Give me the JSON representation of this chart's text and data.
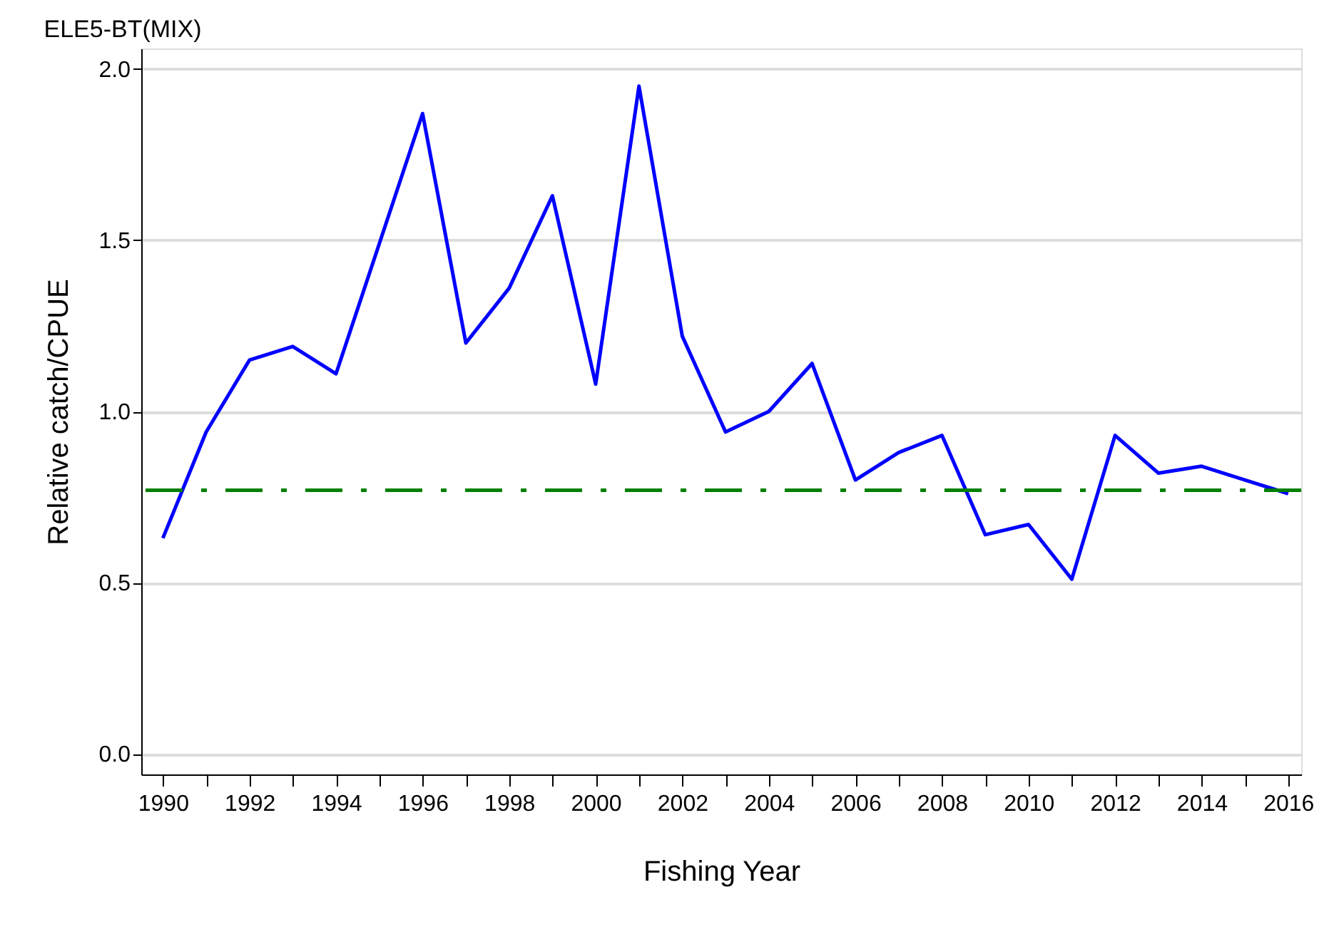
{
  "chart_data": {
    "type": "line",
    "title": "ELE5-BT(MIX)",
    "xlabel": "Fishing Year",
    "ylabel": "Relative catch/CPUE",
    "x": [
      1990,
      1991,
      1992,
      1993,
      1994,
      1995,
      1996,
      1997,
      1998,
      1999,
      2000,
      2001,
      2002,
      2003,
      2004,
      2005,
      2006,
      2007,
      2008,
      2009,
      2010,
      2011,
      2012,
      2013,
      2014,
      2015,
      2016
    ],
    "series": [
      {
        "color": "#0000ff",
        "values": [
          0.63,
          0.94,
          1.15,
          1.19,
          1.11,
          1.49,
          1.87,
          1.2,
          1.36,
          1.63,
          1.08,
          1.95,
          1.22,
          0.94,
          1.0,
          1.14,
          0.8,
          0.88,
          0.93,
          0.64,
          0.67,
          0.51,
          0.93,
          0.82,
          0.84,
          0.8,
          0.76
        ]
      }
    ],
    "xlim": [
      1989.5,
      2016.3
    ],
    "ylim": [
      -0.06,
      2.06
    ],
    "xticks": [
      1990,
      {
        "value": 1991,
        "label": null
      },
      1992,
      {
        "value": 1993,
        "label": null
      },
      1994,
      {
        "value": 1995,
        "label": null
      },
      1996,
      {
        "value": 1997,
        "label": null
      },
      1998,
      {
        "value": 1999,
        "label": null
      },
      2000,
      {
        "value": 2001,
        "label": null
      },
      2002,
      {
        "value": 2003,
        "label": null
      },
      2004,
      {
        "value": 2005,
        "label": null
      },
      2006,
      {
        "value": 2007,
        "label": null
      },
      2008,
      {
        "value": 2009,
        "label": null
      },
      2010,
      {
        "value": 2011,
        "label": null
      },
      2012,
      {
        "value": 2013,
        "label": null
      },
      2014,
      {
        "value": 2015,
        "label": null
      },
      2016
    ],
    "yticks": [
      {
        "value": 0,
        "label": "0.0"
      },
      0.5,
      {
        "value": 1,
        "label": "1.0"
      },
      1.5,
      {
        "value": 2,
        "label": "2.0"
      }
    ],
    "ref_lines": [
      {
        "axis": "y",
        "value": 0.77,
        "color": "#008000",
        "line_style": "dashed"
      }
    ],
    "grid": "y",
    "marker": "none",
    "line_style": "solid"
  }
}
